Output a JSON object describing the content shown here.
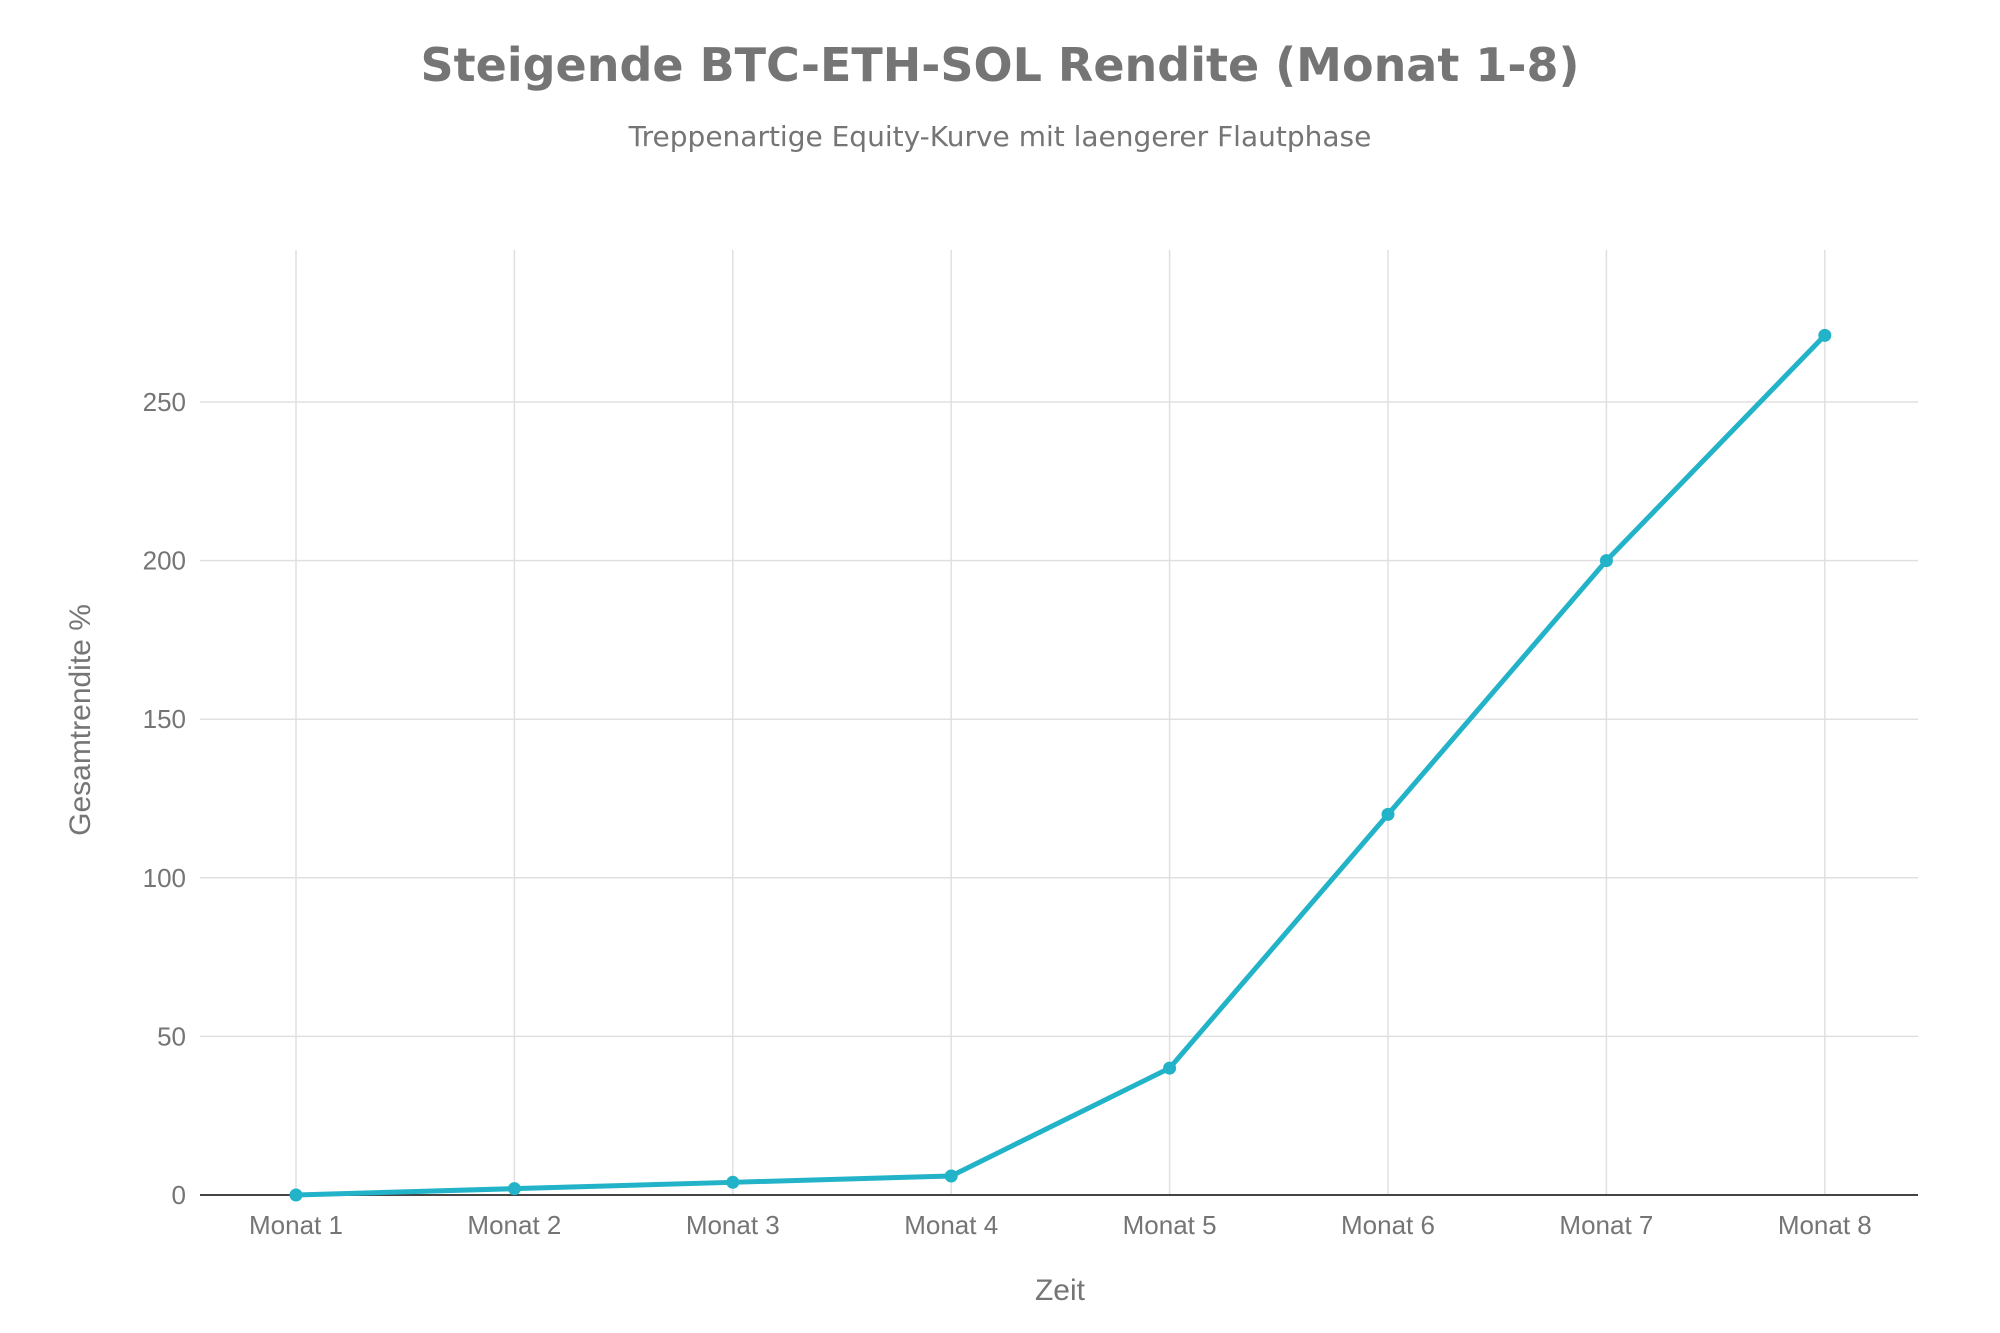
{
  "chart_data": {
    "type": "line",
    "title": "Steigende BTC-ETH-SOL Rendite (Monat 1-8)",
    "subtitle": "Treppenartige Equity-Kurve mit laengerer Flautphase",
    "xlabel": "Zeit",
    "ylabel": "Gesamtrendite %",
    "categories": [
      "Monat 1",
      "Monat 2",
      "Monat 3",
      "Monat 4",
      "Monat 5",
      "Monat 6",
      "Monat 7",
      "Monat 8"
    ],
    "series": [
      {
        "values": [
          0,
          2,
          4,
          6,
          40,
          120,
          200,
          271
        ]
      }
    ],
    "yticks": [
      0,
      50,
      100,
      150,
      200,
      250
    ],
    "ylim": [
      0,
      300
    ],
    "grid": true,
    "legend": "none",
    "colors": {
      "line": "#22b3c8",
      "grid": "#e0e0e0",
      "axis": "#444444",
      "text": "#757575"
    }
  }
}
